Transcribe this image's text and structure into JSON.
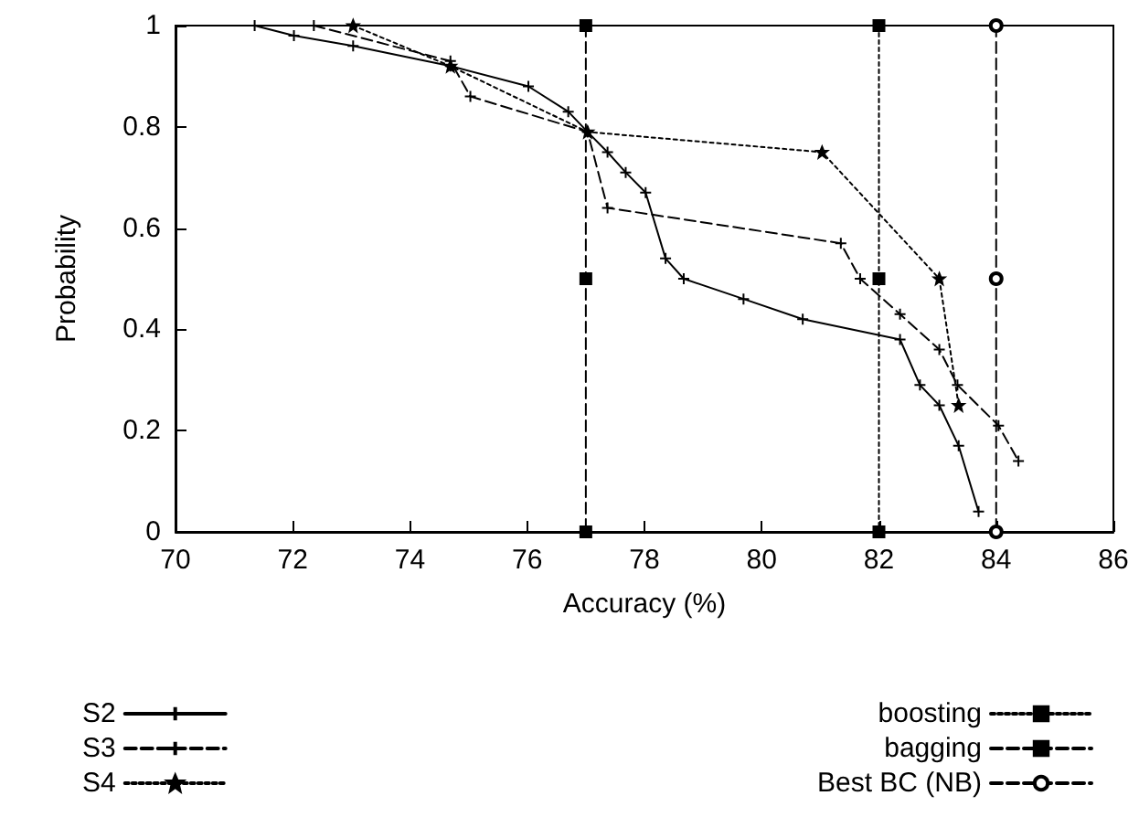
{
  "chart_data": {
    "type": "line",
    "xlabel": "Accuracy (%)",
    "ylabel": "Probability",
    "xlim": [
      70,
      86
    ],
    "xticks": [
      70,
      72,
      74,
      76,
      78,
      80,
      82,
      84,
      86
    ],
    "ylim": [
      0,
      1
    ],
    "yticks": [
      0,
      0.2,
      0.4,
      0.6,
      0.8,
      1
    ],
    "grid": false,
    "legend": "bottom",
    "series": [
      {
        "name": "S2",
        "color": "#000000",
        "marker": "cross",
        "line_style": "solid",
        "x": [
          71.35,
          72.02,
          73.03,
          74.69,
          76.02,
          76.7,
          77.03,
          77.37,
          77.68,
          78.02,
          78.36,
          78.67,
          79.69,
          80.7,
          82.36,
          82.7,
          83.03,
          83.36,
          83.7
        ],
        "values": [
          1,
          0.98,
          0.96,
          0.92,
          0.88,
          0.83,
          0.79,
          0.75,
          0.71,
          0.67,
          0.54,
          0.5,
          0.46,
          0.42,
          0.38,
          0.29,
          0.25,
          0.17,
          0.04
        ]
      },
      {
        "name": "S3",
        "color": "#000000",
        "marker": "cross",
        "line_style": "dashed",
        "x": [
          72.36,
          74.69,
          75.03,
          77.03,
          77.37,
          81.35,
          81.68,
          82.36,
          83.03,
          83.34,
          84.04,
          84.38
        ],
        "values": [
          1,
          0.93,
          0.86,
          0.79,
          0.64,
          0.57,
          0.5,
          0.43,
          0.36,
          0.29,
          0.21,
          0.14
        ]
      },
      {
        "name": "S4",
        "color": "#000000",
        "marker": "star",
        "line_style": "dotted",
        "x": [
          73.03,
          74.69,
          77.03,
          81.03,
          83.03,
          83.36
        ],
        "values": [
          1,
          0.92,
          0.79,
          0.75,
          0.5,
          0.25
        ]
      },
      {
        "name": "boosting",
        "color": "#000000",
        "marker": "square",
        "line_style": "dotted",
        "x": [
          82,
          82,
          82
        ],
        "values": [
          1,
          0.5,
          0
        ]
      },
      {
        "name": "bagging",
        "color": "#000000",
        "marker": "square",
        "line_style": "dashed",
        "x": [
          77,
          77,
          77
        ],
        "values": [
          1,
          0.5,
          0
        ]
      },
      {
        "name": "Best BC (NB)",
        "color": "#000000",
        "marker": "circle",
        "line_style": "dashed",
        "x": [
          84,
          84,
          84
        ],
        "values": [
          1,
          0.5,
          0
        ]
      }
    ]
  }
}
